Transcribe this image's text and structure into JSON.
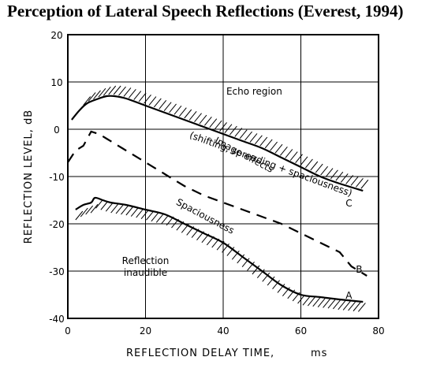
{
  "title": "Perception of Lateral Speech Reflections (Everest, 1994)",
  "chart_data": {
    "type": "line",
    "title": "Perception of Lateral Speech Reflections (Everest, 1994)",
    "xlabel": "REFLECTION DELAY TIME,",
    "xunit": "ms",
    "ylabel": "REFLECTION LEVEL, dB",
    "xlim": [
      0,
      80
    ],
    "ylim": [
      -40,
      20
    ],
    "x_ticks": [
      0,
      20,
      40,
      60,
      80
    ],
    "y_ticks": [
      20,
      10,
      0,
      -10,
      -20,
      -30,
      -40
    ],
    "grid": true,
    "series": [
      {
        "name": "C",
        "style": "solid",
        "x": [
          1,
          3,
          5,
          8,
          10,
          12,
          15,
          20,
          25,
          30,
          35,
          40,
          45,
          50,
          55,
          60,
          65,
          70,
          76
        ],
        "y": [
          2,
          4,
          5.5,
          6.5,
          7,
          7,
          6.5,
          5,
          3.5,
          2,
          0.5,
          -1,
          -2.5,
          -4,
          -6,
          -8,
          -10,
          -11.5,
          -13
        ]
      },
      {
        "name": "B",
        "style": "dashed",
        "x": [
          0,
          2,
          4,
          6,
          8,
          10,
          14,
          20,
          25,
          30,
          35,
          40,
          45,
          50,
          55,
          60,
          65,
          70,
          73,
          77
        ],
        "y": [
          -7,
          -4.5,
          -3.5,
          -0.5,
          -1,
          -2,
          -4,
          -7,
          -9.5,
          -12,
          -14,
          -15.5,
          -17,
          -18.5,
          -20,
          -22,
          -24,
          -26,
          -29,
          -31
        ]
      },
      {
        "name": "A",
        "style": "solid",
        "x": [
          2,
          4,
          6,
          7,
          9,
          11,
          15,
          20,
          25,
          30,
          35,
          40,
          45,
          50,
          55,
          60,
          65,
          70,
          76
        ],
        "y": [
          -17,
          -16,
          -15.5,
          -14.5,
          -15,
          -15.5,
          -16,
          -17,
          -18,
          -20,
          -22,
          -24,
          -27,
          -30,
          -33,
          -35,
          -35.5,
          -36,
          -36.5
        ]
      }
    ],
    "annotations": [
      {
        "text": "Echo region",
        "x": 48,
        "y": 7.3
      },
      {
        "text": "(shifting, spreading + spaciousness)",
        "x": 52,
        "y": -8,
        "rotation": 20
      },
      {
        "text": "Image effects",
        "x": 45,
        "y": -6,
        "rotation": 28
      },
      {
        "text": "Spaciousness",
        "x": 35,
        "y": -19,
        "rotation": 28
      },
      {
        "text": "Reflection",
        "x": 20,
        "y": -28.5
      },
      {
        "text": "inaudible",
        "x": 20,
        "y": -31
      }
    ]
  }
}
